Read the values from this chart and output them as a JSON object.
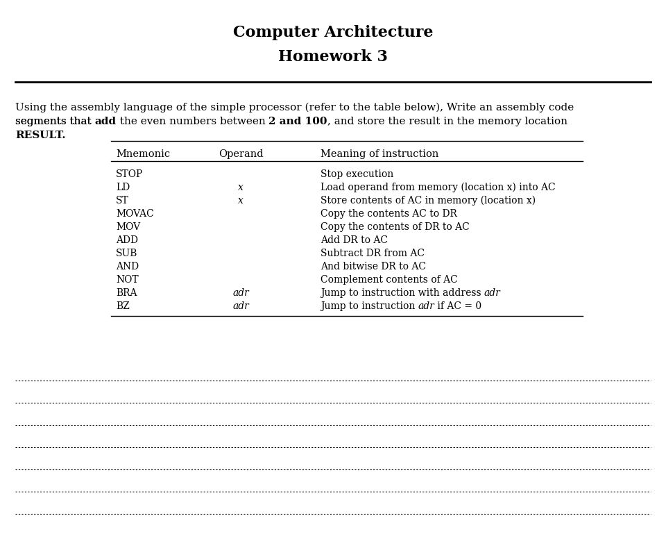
{
  "title1": "Computer Architecture",
  "title2": "Homework 3",
  "table_headers": [
    "Mnemonic",
    "Operand",
    "Meaning of instruction"
  ],
  "table_rows": [
    [
      "STOP",
      "",
      "Stop execution"
    ],
    [
      "LD",
      "x",
      "Load operand from memory (location x) into AC"
    ],
    [
      "ST",
      "x",
      "Store contents of AC in memory (location x)"
    ],
    [
      "MOVAC",
      "",
      "Copy the contents AC to DR"
    ],
    [
      "MOV",
      "",
      "Copy the contents of DR to AC"
    ],
    [
      "ADD",
      "",
      "Add DR to AC"
    ],
    [
      "SUB",
      "",
      "Subtract DR from AC"
    ],
    [
      "AND",
      "",
      "And bitwise DR to AC"
    ],
    [
      "NOT",
      "",
      "Complement contents of AC"
    ],
    [
      "BRA",
      "adr",
      "Jump to instruction with address adr"
    ],
    [
      "BZ",
      "adr",
      "Jump to instruction adr if AC = 0"
    ]
  ],
  "num_dotted_lines": 7,
  "bg_color": "#ffffff"
}
